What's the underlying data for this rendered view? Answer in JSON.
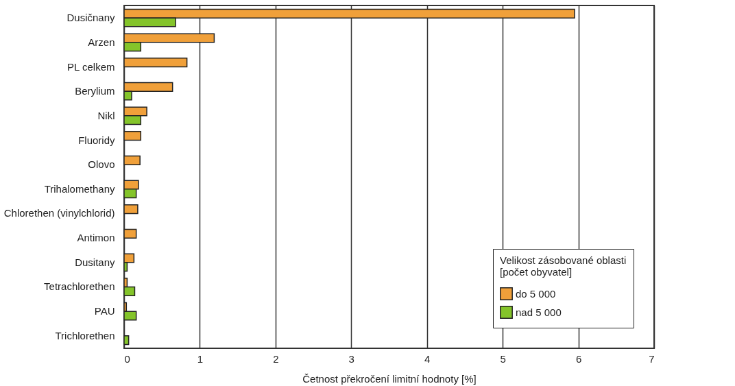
{
  "chart_data": {
    "type": "bar",
    "orientation": "horizontal",
    "xlabel": "Četnost překročení limitní hodnoty [%]",
    "legend_title": "Velikost zásobované oblasti\n[počet obyvatel]",
    "categories": [
      "Dusičnany",
      "Arzen",
      "PL celkem",
      "Berylium",
      "Nikl",
      "Fluoridy",
      "Olovo",
      "Trihalomethany",
      "Chlorethen (vinylchlorid)",
      "Antimon",
      "Dusitany",
      "Tetrachlorethen",
      "PAU",
      "Trichlorethen"
    ],
    "series": [
      {
        "name": "do 5 000",
        "color": "#f0a03a",
        "values": [
          5.95,
          1.19,
          0.83,
          0.64,
          0.3,
          0.22,
          0.21,
          0.19,
          0.18,
          0.16,
          0.13,
          0.04,
          0.03,
          null
        ]
      },
      {
        "name": "nad 5 000",
        "color": "#84c42a",
        "values": [
          0.68,
          0.22,
          null,
          0.1,
          0.22,
          null,
          null,
          0.16,
          null,
          null,
          0.04,
          0.14,
          0.16,
          0.06
        ]
      }
    ],
    "xlim": [
      0,
      7
    ],
    "xticks": [
      0,
      1,
      2,
      3,
      4,
      5,
      6,
      7
    ],
    "grid": "x",
    "legend": "bottom right"
  }
}
